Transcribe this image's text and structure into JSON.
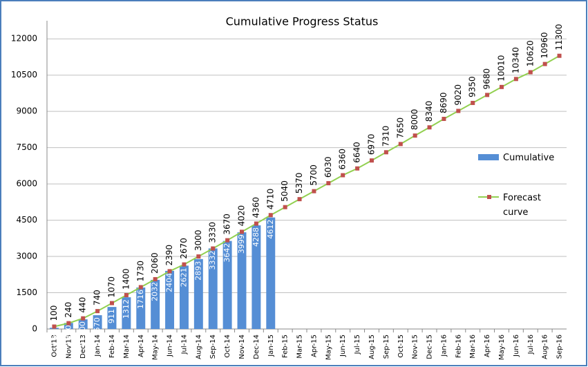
{
  "chart_data": {
    "type": "bar_line",
    "title": "Cumulative Progress Status",
    "categories": [
      "Oct'13",
      "Nov'13",
      "Dec'13",
      "Jan-14",
      "Feb-14",
      "Mar-14",
      "Apr-14",
      "May-14",
      "Jun-14",
      "Jul-14",
      "Aug-14",
      "Sep-14",
      "Oct-14",
      "Nov-14",
      "Dec-14",
      "Jan-15",
      "Feb-15",
      "Mar-15",
      "Apr-15",
      "May-15",
      "Jun-15",
      "Jul-15",
      "Aug-15",
      "Sep-15",
      "Oct-15",
      "Nov-15",
      "Dec-15",
      "Jan-16",
      "Feb-16",
      "Mar-16",
      "Apr-16",
      "May-16",
      "Jun-16",
      "Jul-16",
      "Aug-16",
      "Sep-16"
    ],
    "series": [
      {
        "name": "Cumulative",
        "type": "bar",
        "color": "#558ed5",
        "values": [
          50,
          250,
          400,
          570,
          911,
          1312,
          1716,
          2032,
          2404,
          2621,
          2893,
          3332,
          3642,
          3999,
          4288,
          4612,
          null,
          null,
          null,
          null,
          null,
          null,
          null,
          null,
          null,
          null,
          null,
          null,
          null,
          null,
          null,
          null,
          null,
          null,
          null,
          null
        ]
      },
      {
        "name": "Forecast curve",
        "type": "line",
        "color": "#92d050",
        "marker_color": "#c0504d",
        "values": [
          100,
          240,
          440,
          740,
          1070,
          1400,
          1730,
          2060,
          2390,
          2670,
          3000,
          3330,
          3670,
          4020,
          4360,
          4710,
          5040,
          5370,
          5700,
          6030,
          6360,
          6640,
          6970,
          7310,
          7650,
          8000,
          8340,
          8690,
          9020,
          9350,
          9680,
          10010,
          10340,
          10620,
          10960,
          11300
        ]
      }
    ],
    "ylim": [
      0,
      12750
    ],
    "yticks": [
      0,
      1500,
      3000,
      4500,
      6000,
      7500,
      9000,
      10500,
      12000
    ],
    "grid": true,
    "legend": "right"
  }
}
